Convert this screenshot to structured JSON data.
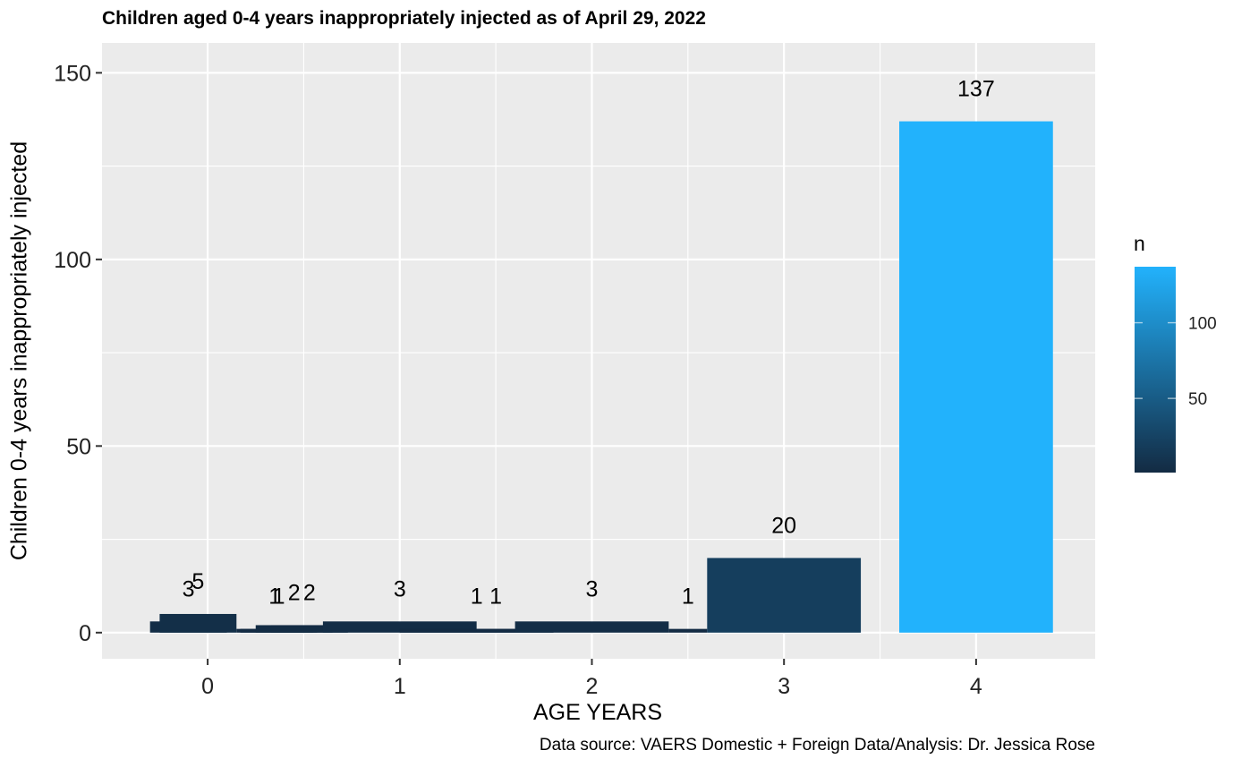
{
  "chart_data": {
    "type": "bar",
    "title": "Children aged 0-4 years inappropriately injected as of April 29, 2022",
    "xlabel": "AGE YEARS",
    "ylabel": "Children 0-4 years inappropriately injected",
    "caption": "Data source: VAERS Domestic + Foreign Data/Analysis: Dr. Jessica Rose",
    "x_ticks": [
      "0",
      "1",
      "2",
      "3",
      "4"
    ],
    "y_ticks": [
      0,
      50,
      100,
      150
    ],
    "xlim": [
      -0.55,
      4.62
    ],
    "ylim": [
      -7,
      158
    ],
    "grid": true,
    "legend": {
      "title": "n",
      "position": "right",
      "type": "colorbar",
      "range": [
        1,
        137
      ],
      "ticks": [
        50,
        100
      ],
      "low_color": "#132B43",
      "high_color": "#22B2FC"
    },
    "bars": [
      {
        "x": -0.3,
        "width": 0.4,
        "value": 3,
        "label": "3"
      },
      {
        "x": -0.25,
        "width": 0.4,
        "value": 5,
        "label": "5"
      },
      {
        "x": 0.17,
        "width": 0.4,
        "value": 1,
        "label": "1"
      },
      {
        "x": 0.15,
        "width": 0.4,
        "value": 1,
        "label": "1"
      },
      {
        "x": 0.25,
        "width": 0.4,
        "value": 2,
        "label": "2"
      },
      {
        "x": 0.33,
        "width": 0.4,
        "value": 2,
        "label": "2"
      },
      {
        "x": 0.6,
        "width": 0.8,
        "value": 3,
        "label": "3"
      },
      {
        "x": 1.0,
        "width": 0.8,
        "value": 1,
        "label": "1"
      },
      {
        "x": 1.4,
        "width": 0.2,
        "value": 1,
        "label": "1"
      },
      {
        "x": 1.6,
        "width": 0.8,
        "value": 3,
        "label": "3"
      },
      {
        "x": 2.4,
        "width": 0.2,
        "value": 1,
        "label": "1"
      },
      {
        "x": 2.6,
        "width": 0.8,
        "value": 20,
        "label": "20"
      },
      {
        "x": 3.6,
        "width": 0.8,
        "value": 137,
        "label": "137"
      }
    ]
  }
}
